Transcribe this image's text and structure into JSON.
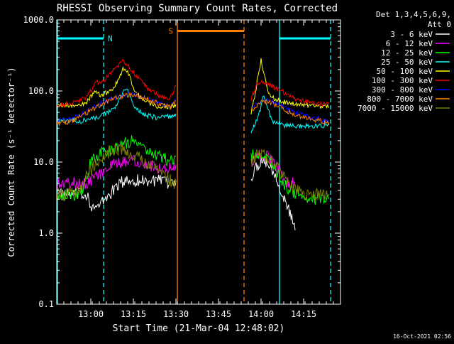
{
  "chart_data": {
    "type": "line",
    "title": "RHESSI Observing Summary Count Rates, Corrected",
    "xlabel": "Start Time (21-Mar-04 12:48:02)",
    "ylabel": "Corrected Count Rate (s⁻¹ detector⁻¹)",
    "x_unit": "minutes after 12:48:02",
    "xlim": [
      0,
      100
    ],
    "ylim": [
      0.1,
      1000
    ],
    "yscale": "log",
    "x_ticks": [
      {
        "value": 12,
        "label": "13:00"
      },
      {
        "value": 27,
        "label": "13:15"
      },
      {
        "value": 42,
        "label": "13:30"
      },
      {
        "value": 57,
        "label": "13:45"
      },
      {
        "value": 72,
        "label": "14:00"
      },
      {
        "value": 87,
        "label": "14:15"
      }
    ],
    "y_ticks": [
      {
        "value": 0.1,
        "label": "0.1"
      },
      {
        "value": 1,
        "label": "1.0"
      },
      {
        "value": 10,
        "label": "10.0"
      },
      {
        "value": 100,
        "label": "100.0"
      },
      {
        "value": 1000,
        "label": "1000.0"
      }
    ],
    "legend": {
      "position": "top-right",
      "header": [
        "Det 1,3,4,5,6,9,",
        "Att 0"
      ]
    },
    "annotations": [
      {
        "label": "N",
        "color": "#00ffff"
      },
      {
        "label": "S",
        "color": "#ff8000"
      }
    ],
    "footer": "16-Oct-2021 02:56",
    "bands": [
      {
        "type": "night",
        "color": "#00ffff",
        "x_start": 0,
        "x_end": 16.5,
        "y": 550
      },
      {
        "type": "saa",
        "color": "#ff8000",
        "x_start": 42.5,
        "x_end": 66.0,
        "y": 700
      },
      {
        "type": "night",
        "color": "#00ffff",
        "x_start": 78.5,
        "x_end": 96.5,
        "y": 550
      }
    ],
    "vlines": [
      {
        "x": 16.5,
        "color": "#00ffff",
        "style": "dashed"
      },
      {
        "x": 42.5,
        "color": "#ff8000",
        "style": "solid"
      },
      {
        "x": 66.0,
        "color": "#ff8000",
        "style": "dashed"
      },
      {
        "x": 78.5,
        "color": "#00ffff",
        "style": "solid"
      },
      {
        "x": 96.5,
        "color": "#00ffff",
        "style": "dashed"
      }
    ],
    "gap": [
      42.5,
      68.5
    ],
    "series": [
      {
        "name": "3 - 6 keV",
        "color": "#ffffff",
        "points": [
          [
            0,
            3.5
          ],
          [
            7,
            3.5
          ],
          [
            11,
            3.5
          ],
          [
            12,
            2.5
          ],
          [
            14,
            2.2
          ],
          [
            17,
            3
          ],
          [
            20,
            4
          ],
          [
            22,
            5
          ],
          [
            25,
            5.5
          ],
          [
            30,
            5.5
          ],
          [
            35,
            5.5
          ],
          [
            40,
            5
          ],
          [
            42,
            5.5
          ],
          [
            68.5,
            6
          ],
          [
            70,
            8
          ],
          [
            72,
            11
          ],
          [
            74,
            10
          ],
          [
            76,
            8
          ],
          [
            78,
            5.5
          ],
          [
            80,
            3
          ],
          [
            82,
            2
          ],
          [
            84,
            1.1
          ]
        ]
      },
      {
        "name": "6 - 12 keV",
        "color": "#ff00ff",
        "points": [
          [
            0,
            5
          ],
          [
            7,
            5
          ],
          [
            10,
            5
          ],
          [
            13,
            6
          ],
          [
            16,
            7
          ],
          [
            20,
            9
          ],
          [
            24,
            10
          ],
          [
            27,
            11
          ],
          [
            30,
            10
          ],
          [
            33,
            9
          ],
          [
            38,
            8
          ],
          [
            42,
            9
          ],
          [
            68.5,
            10
          ],
          [
            70,
            12
          ],
          [
            72,
            13
          ],
          [
            74,
            12
          ],
          [
            76,
            10
          ],
          [
            78,
            8
          ],
          [
            80,
            6
          ],
          [
            82,
            5
          ],
          [
            84,
            5
          ]
        ]
      },
      {
        "name": "12 - 25 keV",
        "color": "#00ff00",
        "points": [
          [
            0,
            3.5
          ],
          [
            5,
            3.5
          ],
          [
            8,
            3.5
          ],
          [
            10,
            5
          ],
          [
            12,
            10
          ],
          [
            15,
            13
          ],
          [
            20,
            15
          ],
          [
            23,
            18
          ],
          [
            27,
            20
          ],
          [
            31,
            16
          ],
          [
            35,
            13
          ],
          [
            40,
            10
          ],
          [
            42,
            12
          ],
          [
            68.5,
            12
          ],
          [
            70,
            14
          ],
          [
            72,
            13
          ],
          [
            75,
            10
          ],
          [
            78,
            7
          ],
          [
            80,
            5
          ],
          [
            84,
            3.5
          ],
          [
            88,
            3
          ],
          [
            92,
            3
          ],
          [
            96,
            3
          ]
        ]
      },
      {
        "name": "25 - 50 keV",
        "color": "#00ffff",
        "points": [
          [
            0,
            38
          ],
          [
            4,
            38
          ],
          [
            8,
            37
          ],
          [
            12,
            40
          ],
          [
            16,
            45
          ],
          [
            20,
            55
          ],
          [
            23,
            85
          ],
          [
            24,
            110
          ],
          [
            25,
            100
          ],
          [
            27,
            65
          ],
          [
            30,
            48
          ],
          [
            35,
            42
          ],
          [
            40,
            44
          ],
          [
            42,
            48
          ],
          [
            68.5,
            25
          ],
          [
            70,
            35
          ],
          [
            72,
            60
          ],
          [
            73,
            90
          ],
          [
            74,
            60
          ],
          [
            76,
            38
          ],
          [
            80,
            33
          ],
          [
            85,
            32
          ],
          [
            90,
            32
          ],
          [
            96,
            33
          ]
        ]
      },
      {
        "name": "50 - 100 keV",
        "color": "#ffff00",
        "points": [
          [
            0,
            62
          ],
          [
            5,
            62
          ],
          [
            10,
            65
          ],
          [
            13,
            95
          ],
          [
            16,
            88
          ],
          [
            20,
            105
          ],
          [
            23,
            190
          ],
          [
            24,
            220
          ],
          [
            25,
            190
          ],
          [
            27,
            110
          ],
          [
            30,
            75
          ],
          [
            35,
            62
          ],
          [
            40,
            60
          ],
          [
            42,
            65
          ],
          [
            68.5,
            50
          ],
          [
            70,
            90
          ],
          [
            71,
            180
          ],
          [
            72,
            270
          ],
          [
            73,
            180
          ],
          [
            74,
            110
          ],
          [
            76,
            80
          ],
          [
            80,
            70
          ],
          [
            85,
            65
          ],
          [
            90,
            62
          ],
          [
            96,
            60
          ]
        ]
      },
      {
        "name": "100 - 300 keV",
        "color": "#ff0000",
        "points": [
          [
            0,
            65
          ],
          [
            5,
            65
          ],
          [
            10,
            80
          ],
          [
            14,
            130
          ],
          [
            17,
            145
          ],
          [
            20,
            200
          ],
          [
            22,
            240
          ],
          [
            23,
            270
          ],
          [
            25,
            230
          ],
          [
            28,
            160
          ],
          [
            32,
            110
          ],
          [
            36,
            85
          ],
          [
            40,
            78
          ],
          [
            42,
            120
          ],
          [
            68.5,
            75
          ],
          [
            70,
            115
          ],
          [
            72,
            140
          ],
          [
            74,
            130
          ],
          [
            78,
            105
          ],
          [
            80,
            95
          ],
          [
            85,
            75
          ],
          [
            90,
            68
          ],
          [
            96,
            65
          ]
        ]
      },
      {
        "name": "300 - 800 keV",
        "color": "#0000ff",
        "points": [
          [
            0,
            38
          ],
          [
            5,
            40
          ],
          [
            10,
            50
          ],
          [
            15,
            65
          ],
          [
            20,
            80
          ],
          [
            25,
            90
          ],
          [
            30,
            85
          ],
          [
            35,
            70
          ],
          [
            40,
            60
          ],
          [
            42,
            75
          ],
          [
            68.5,
            55
          ],
          [
            72,
            75
          ],
          [
            76,
            70
          ],
          [
            80,
            58
          ],
          [
            85,
            48
          ],
          [
            90,
            42
          ],
          [
            96,
            38
          ]
        ]
      },
      {
        "name": "800 - 7000 keV",
        "color": "#ff8000",
        "points": [
          [
            0,
            35
          ],
          [
            5,
            37
          ],
          [
            10,
            48
          ],
          [
            15,
            62
          ],
          [
            20,
            78
          ],
          [
            25,
            88
          ],
          [
            30,
            83
          ],
          [
            35,
            68
          ],
          [
            40,
            58
          ],
          [
            42,
            72
          ],
          [
            68.5,
            52
          ],
          [
            72,
            72
          ],
          [
            76,
            68
          ],
          [
            80,
            55
          ],
          [
            85,
            45
          ],
          [
            90,
            40
          ],
          [
            96,
            36
          ]
        ]
      },
      {
        "name": "7000 - 15000 keV",
        "color": "#808000",
        "points": [
          [
            0,
            3.5
          ],
          [
            5,
            3.5
          ],
          [
            8,
            4
          ],
          [
            11,
            7
          ],
          [
            14,
            10
          ],
          [
            17,
            13
          ],
          [
            21,
            15
          ],
          [
            25,
            14
          ],
          [
            29,
            12
          ],
          [
            33,
            9
          ],
          [
            37,
            7
          ],
          [
            40,
            5.5
          ],
          [
            42,
            5
          ],
          [
            68.5,
            10
          ],
          [
            71,
            13
          ],
          [
            74,
            12
          ],
          [
            77,
            9
          ],
          [
            80,
            6
          ],
          [
            84,
            4
          ],
          [
            88,
            3.5
          ],
          [
            92,
            3.5
          ],
          [
            96,
            3.5
          ]
        ]
      }
    ]
  }
}
